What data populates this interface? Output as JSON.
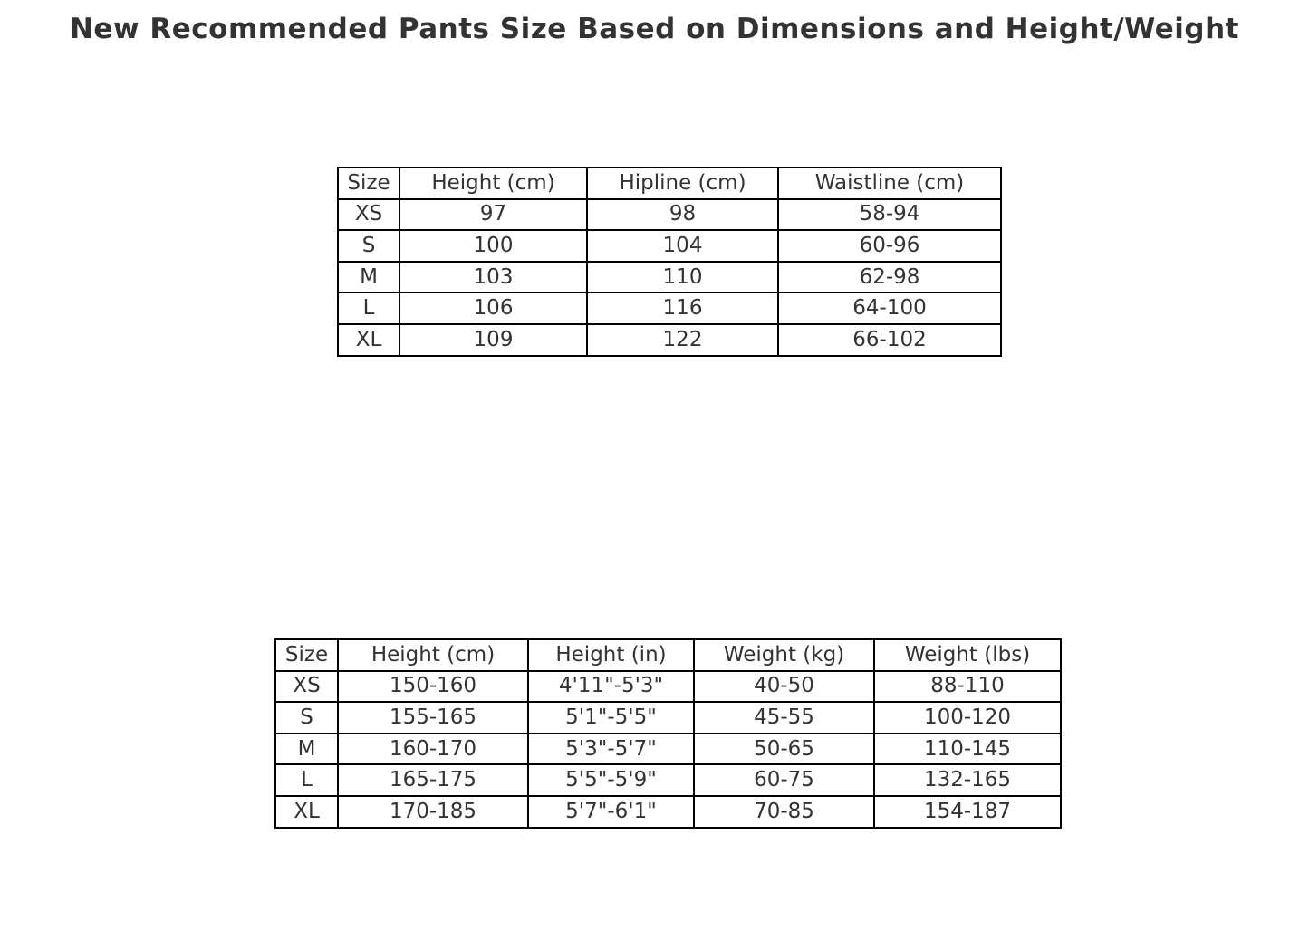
{
  "title": "New Recommended Pants Size Based on Dimensions and Height/Weight",
  "colors": {
    "background": "#ffffff",
    "text": "#333333",
    "table_border": "#000000"
  },
  "chart_data": [
    {
      "type": "table",
      "name": "pants-size-dimensions",
      "columns": [
        "Size",
        "Height (cm)",
        "Hipline (cm)",
        "Waistline (cm)"
      ],
      "rows": [
        [
          "XS",
          "97",
          "98",
          "58-94"
        ],
        [
          "S",
          "100",
          "104",
          "60-96"
        ],
        [
          "M",
          "103",
          "110",
          "62-98"
        ],
        [
          "L",
          "106",
          "116",
          "64-100"
        ],
        [
          "XL",
          "109",
          "122",
          "66-102"
        ]
      ]
    },
    {
      "type": "table",
      "name": "pants-size-height-weight",
      "columns": [
        "Size",
        "Height (cm)",
        "Height (in)",
        "Weight (kg)",
        "Weight (lbs)"
      ],
      "rows": [
        [
          "XS",
          "150-160",
          "4'11\"-5'3\"",
          "40-50",
          "88-110"
        ],
        [
          "S",
          "155-165",
          "5'1\"-5'5\"",
          "45-55",
          "100-120"
        ],
        [
          "M",
          "160-170",
          "5'3\"-5'7\"",
          "50-65",
          "110-145"
        ],
        [
          "L",
          "165-175",
          "5'5\"-5'9\"",
          "60-75",
          "132-165"
        ],
        [
          "XL",
          "170-185",
          "5'7\"-6'1\"",
          "70-85",
          "154-187"
        ]
      ]
    }
  ]
}
